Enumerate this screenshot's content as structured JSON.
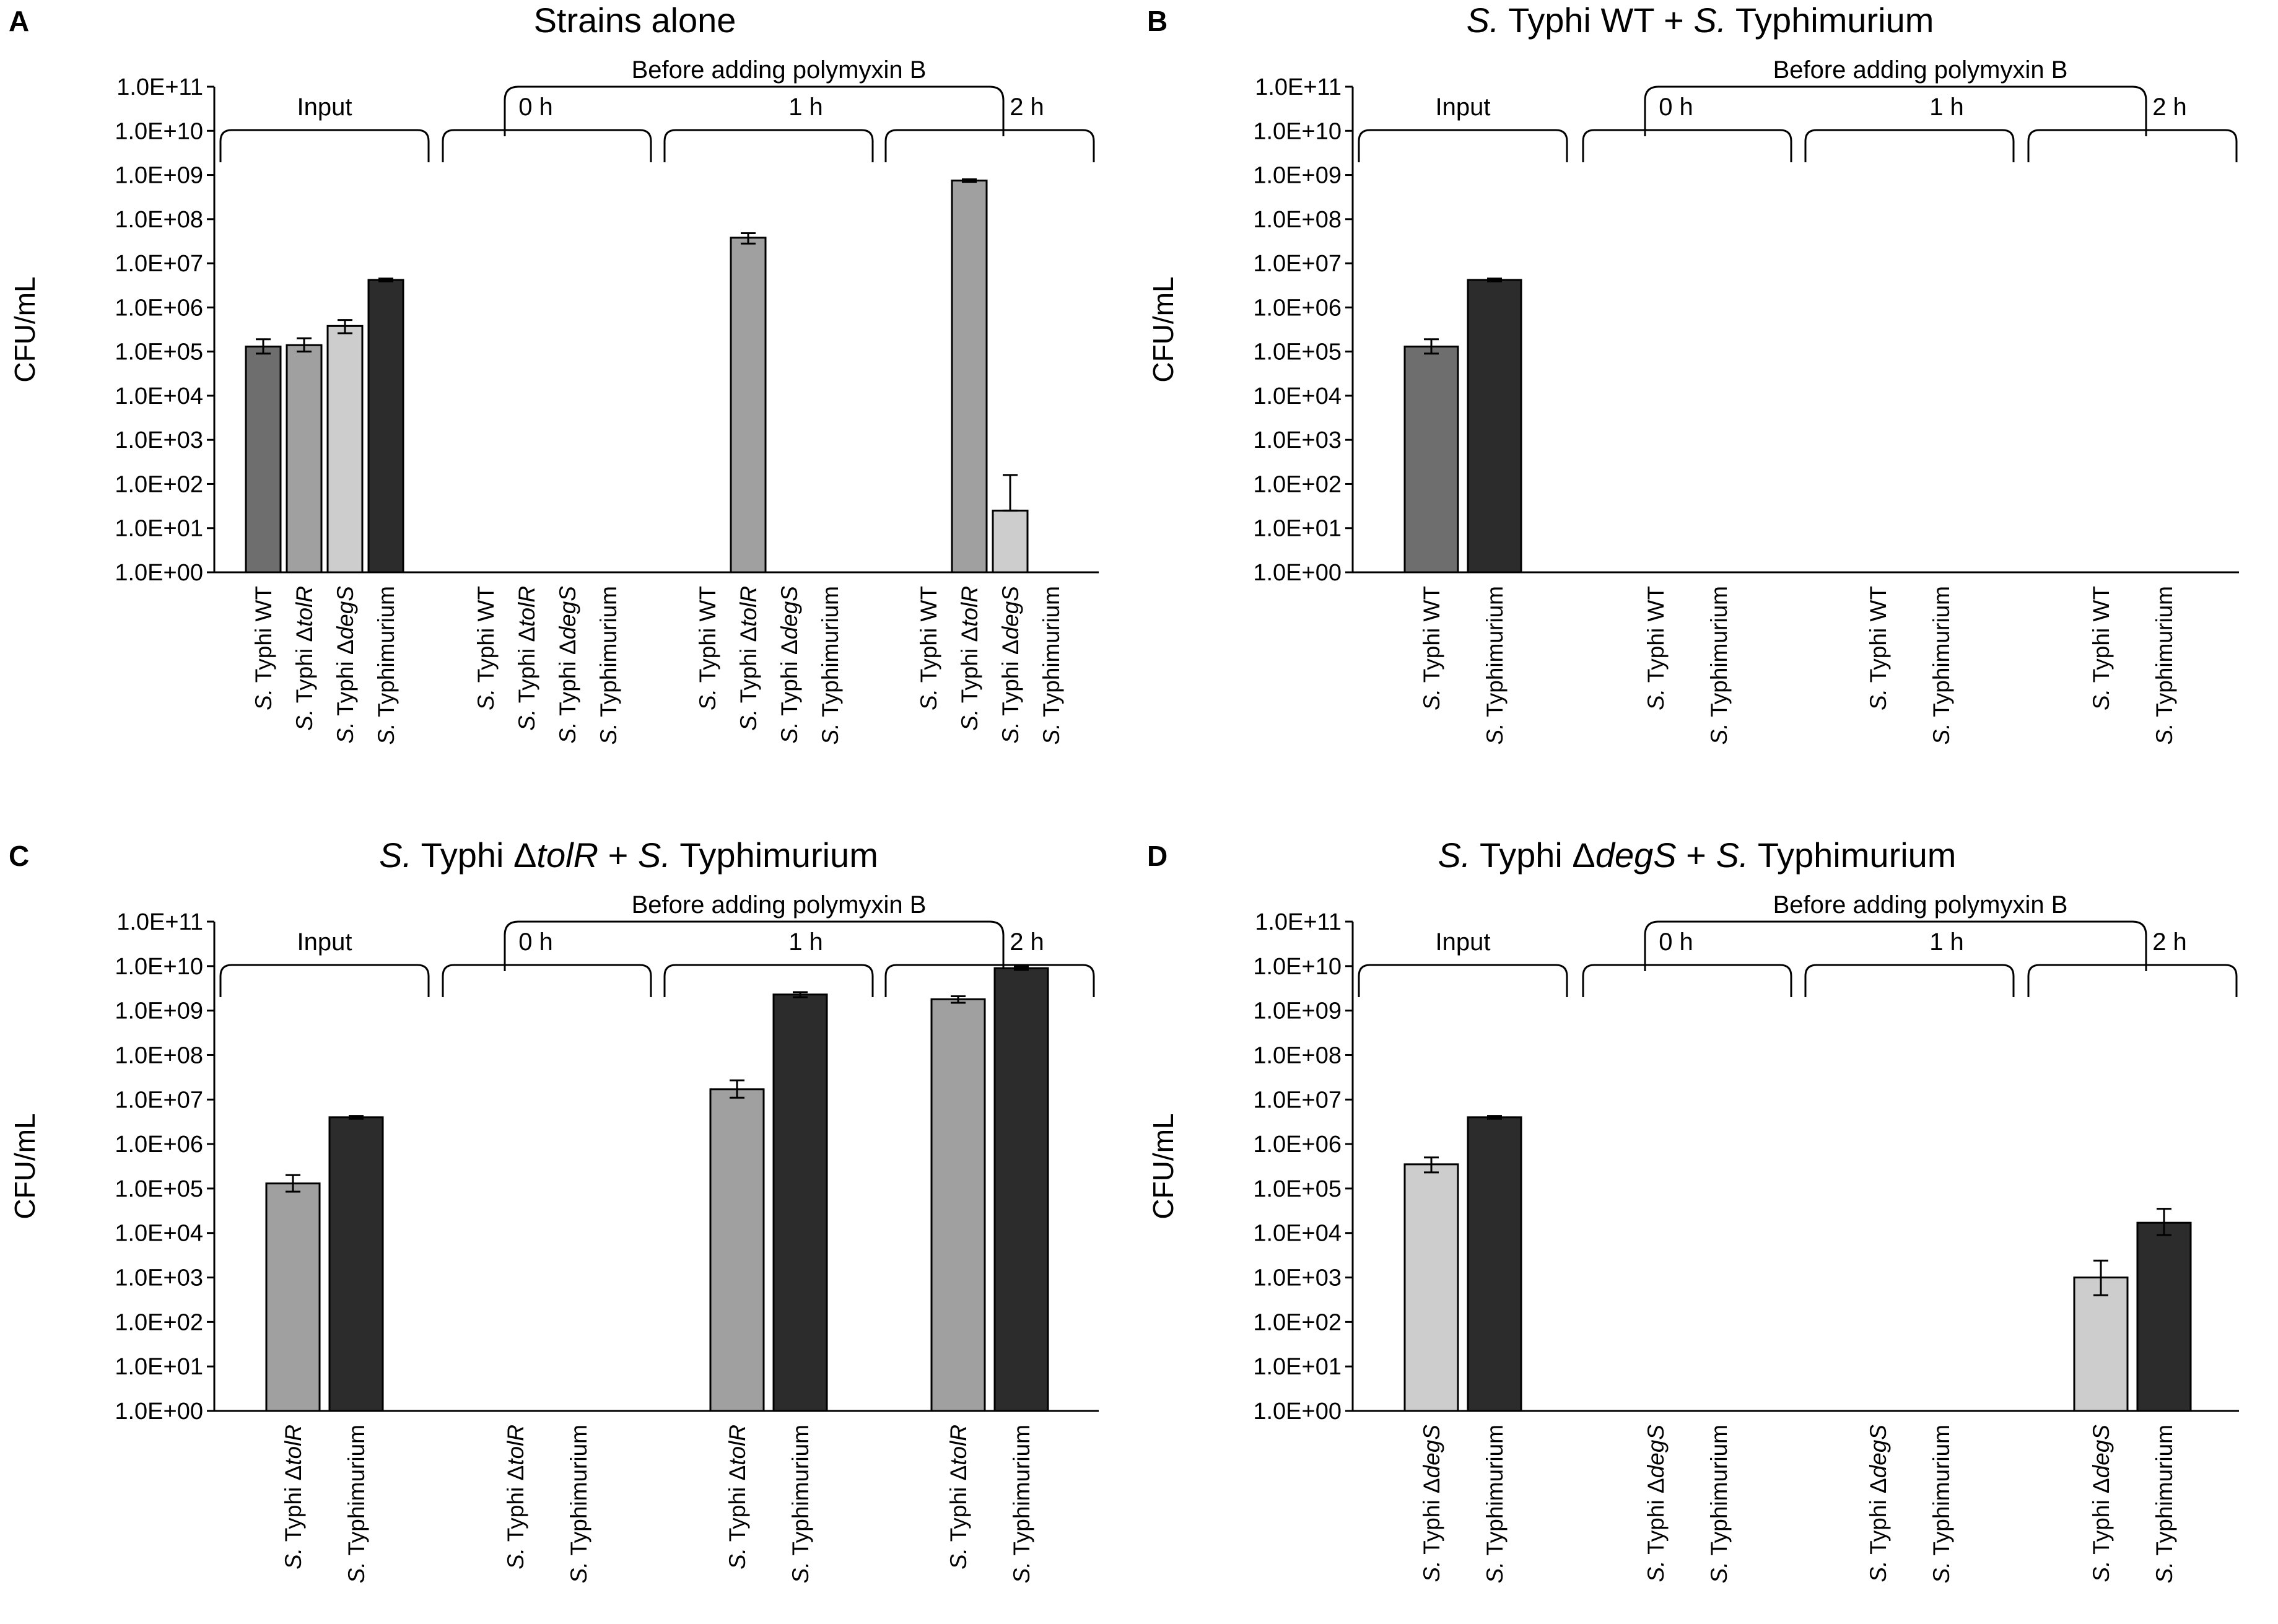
{
  "colors": {
    "wt": "#6e6e6e",
    "tolR": "#a0a0a0",
    "degS": "#cdcdcd",
    "tm": "#2c2c2c",
    "stroke": "#000000"
  },
  "chart_data": [
    {
      "type": "bar",
      "panel": "A",
      "title": "Strains alone",
      "ylabel": "CFU/mL",
      "yscale": "log10",
      "ylim": [
        1,
        100000000000
      ],
      "yticks": [
        "1.0E+00",
        "1.0E+01",
        "1.0E+02",
        "1.0E+03",
        "1.0E+04",
        "1.0E+05",
        "1.0E+06",
        "1.0E+07",
        "1.0E+08",
        "1.0E+09",
        "1.0E+10",
        "1.0E+11"
      ],
      "bracket_header": "Before adding polymyxin B",
      "groups": [
        {
          "label": "Input",
          "categories": [
            {
              "label": "S. Typhi WT",
              "strain": "wt",
              "value": 130000,
              "err_up": 190000,
              "err_low": 90000
            },
            {
              "label": "S. Typhi ΔtolR",
              "strain": "tolR",
              "value": 140000,
              "err_up": 200000,
              "err_low": 100000
            },
            {
              "label": "S. Typhi ΔdegS",
              "strain": "degS",
              "value": 380000,
              "err_up": 520000,
              "err_low": 260000
            },
            {
              "label": "S. Typhimurium",
              "strain": "tm",
              "value": 4200000,
              "err_up": 4500000,
              "err_low": 3900000
            }
          ]
        },
        {
          "label": "0 h",
          "categories": [
            {
              "label": "S. Typhi WT",
              "strain": "wt",
              "value": null
            },
            {
              "label": "S. Typhi ΔtolR",
              "strain": "tolR",
              "value": null
            },
            {
              "label": "S. Typhi ΔdegS",
              "strain": "degS",
              "value": null
            },
            {
              "label": "S. Typhimurium",
              "strain": "tm",
              "value": null
            }
          ]
        },
        {
          "label": "1 h",
          "categories": [
            {
              "label": "S. Typhi WT",
              "strain": "wt",
              "value": null
            },
            {
              "label": "S. Typhi ΔtolR",
              "strain": "tolR",
              "value": 38000000,
              "err_up": 48000000,
              "err_low": 28000000
            },
            {
              "label": "S. Typhi ΔdegS",
              "strain": "degS",
              "value": null
            },
            {
              "label": "S. Typhimurium",
              "strain": "tm",
              "value": null
            }
          ]
        },
        {
          "label": "2 h",
          "categories": [
            {
              "label": "S. Typhi WT",
              "strain": "wt",
              "value": null
            },
            {
              "label": "S. Typhi ΔtolR",
              "strain": "tolR",
              "value": 750000000,
              "err_up": 800000000,
              "err_low": 700000000
            },
            {
              "label": "S. Typhi ΔdegS",
              "strain": "degS",
              "value": 25,
              "err_up": 160,
              "err_low": 25
            },
            {
              "label": "S. Typhimurium",
              "strain": "tm",
              "value": null
            }
          ]
        }
      ]
    },
    {
      "type": "bar",
      "panel": "B",
      "title": "S. Typhi WT + S. Typhimurium",
      "ylabel": "CFU/mL",
      "yscale": "log10",
      "ylim": [
        1,
        100000000000
      ],
      "yticks": [
        "1.0E+00",
        "1.0E+01",
        "1.0E+02",
        "1.0E+03",
        "1.0E+04",
        "1.0E+05",
        "1.0E+06",
        "1.0E+07",
        "1.0E+08",
        "1.0E+09",
        "1.0E+10",
        "1.0E+11"
      ],
      "bracket_header": "Before adding polymyxin B",
      "groups": [
        {
          "label": "Input",
          "categories": [
            {
              "label": "S. Typhi WT",
              "strain": "wt",
              "value": 130000,
              "err_up": 190000,
              "err_low": 90000
            },
            {
              "label": "S. Typhimurium",
              "strain": "tm",
              "value": 4200000,
              "err_up": 4500000,
              "err_low": 3900000
            }
          ]
        },
        {
          "label": "0 h",
          "categories": [
            {
              "label": "S. Typhi WT",
              "strain": "wt",
              "value": null
            },
            {
              "label": "S. Typhimurium",
              "strain": "tm",
              "value": null
            }
          ]
        },
        {
          "label": "1 h",
          "categories": [
            {
              "label": "S. Typhi WT",
              "strain": "wt",
              "value": null
            },
            {
              "label": "S. Typhimurium",
              "strain": "tm",
              "value": null
            }
          ]
        },
        {
          "label": "2 h",
          "categories": [
            {
              "label": "S. Typhi WT",
              "strain": "wt",
              "value": null
            },
            {
              "label": "S. Typhimurium",
              "strain": "tm",
              "value": null
            }
          ]
        }
      ]
    },
    {
      "type": "bar",
      "panel": "C",
      "title": "S. Typhi ΔtolR + S. Typhimurium",
      "ylabel": "CFU/mL",
      "yscale": "log10",
      "ylim": [
        1,
        100000000000
      ],
      "yticks": [
        "1.0E+00",
        "1.0E+01",
        "1.0E+02",
        "1.0E+03",
        "1.0E+04",
        "1.0E+05",
        "1.0E+06",
        "1.0E+07",
        "1.0E+08",
        "1.0E+09",
        "1.0E+10",
        "1.0E+11"
      ],
      "bracket_header": "Before adding polymyxin B",
      "groups": [
        {
          "label": "Input",
          "categories": [
            {
              "label": "S. Typhi ΔtolR",
              "strain": "tolR",
              "value": 130000,
              "err_up": 200000,
              "err_low": 85000
            },
            {
              "label": "S. Typhimurium",
              "strain": "tm",
              "value": 4000000,
              "err_up": 4300000,
              "err_low": 3700000
            }
          ]
        },
        {
          "label": "0 h",
          "categories": [
            {
              "label": "S. Typhi ΔtolR",
              "strain": "tolR",
              "value": null
            },
            {
              "label": "S. Typhimurium",
              "strain": "tm",
              "value": null
            }
          ]
        },
        {
          "label": "1 h",
          "categories": [
            {
              "label": "S. Typhi ΔtolR",
              "strain": "tolR",
              "value": 17000000,
              "err_up": 27000000,
              "err_low": 11000000
            },
            {
              "label": "S. Typhimurium",
              "strain": "tm",
              "value": 2300000000,
              "err_up": 2600000000,
              "err_low": 2000000000
            }
          ]
        },
        {
          "label": "2 h",
          "categories": [
            {
              "label": "S. Typhi ΔtolR",
              "strain": "tolR",
              "value": 1800000000,
              "err_up": 2100000000,
              "err_low": 1500000000
            },
            {
              "label": "S. Typhimurium",
              "strain": "tm",
              "value": 9000000000,
              "err_up": 9800000000,
              "err_low": 8200000000
            }
          ]
        }
      ]
    },
    {
      "type": "bar",
      "panel": "D",
      "title": "S. Typhi ΔdegS + S. Typhimurium",
      "ylabel": "CFU/mL",
      "yscale": "log10",
      "ylim": [
        1,
        100000000000
      ],
      "yticks": [
        "1.0E+00",
        "1.0E+01",
        "1.0E+02",
        "1.0E+03",
        "1.0E+04",
        "1.0E+05",
        "1.0E+06",
        "1.0E+07",
        "1.0E+08",
        "1.0E+09",
        "1.0E+10",
        "1.0E+11"
      ],
      "bracket_header": "Before adding polymyxin B",
      "groups": [
        {
          "label": "Input",
          "categories": [
            {
              "label": "S. Typhi ΔdegS",
              "strain": "degS",
              "value": 350000,
              "err_up": 500000,
              "err_low": 230000
            },
            {
              "label": "S. Typhimurium",
              "strain": "tm",
              "value": 4000000,
              "err_up": 4300000,
              "err_low": 3700000
            }
          ]
        },
        {
          "label": "0 h",
          "categories": [
            {
              "label": "S. Typhi ΔdegS",
              "strain": "degS",
              "value": null
            },
            {
              "label": "S. Typhimurium",
              "strain": "tm",
              "value": null
            }
          ]
        },
        {
          "label": "1 h",
          "categories": [
            {
              "label": "S. Typhi ΔdegS",
              "strain": "degS",
              "value": null
            },
            {
              "label": "S. Typhimurium",
              "strain": "tm",
              "value": null
            }
          ]
        },
        {
          "label": "2 h",
          "categories": [
            {
              "label": "S. Typhi ΔdegS",
              "strain": "degS",
              "value": 1000,
              "err_up": 2400,
              "err_low": 400
            },
            {
              "label": "S. Typhimurium",
              "strain": "tm",
              "value": 17000,
              "err_up": 35000,
              "err_low": 9000
            }
          ]
        }
      ]
    }
  ]
}
